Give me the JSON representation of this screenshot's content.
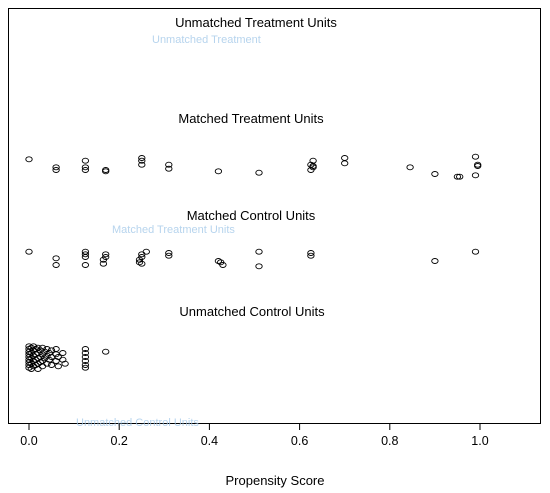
{
  "chart_data": {
    "type": "scatter",
    "title": "",
    "xlabel": "Propensity Score",
    "ylabel": "",
    "xlim": [
      -0.05,
      1.15
    ],
    "xticks": [
      "0.0",
      "0.2",
      "0.4",
      "0.6",
      "0.8",
      "1.0"
    ],
    "xtick_values": [
      0,
      0.2,
      0.4,
      0.6,
      0.8,
      1.0
    ],
    "grid": false,
    "legend": "none",
    "point_style": "open-circle",
    "ghost_labels": [
      "Unmatched Treatment",
      "Matched Treatment Units",
      "Unmatched Control Units"
    ],
    "groups": [
      {
        "name": "Unmatched Treatment Units",
        "points": []
      },
      {
        "name": "Matched Treatment Units",
        "points": [
          [
            0.0,
            4
          ],
          [
            0.06,
            10
          ],
          [
            0.06,
            12
          ],
          [
            0.125,
            5
          ],
          [
            0.125,
            10
          ],
          [
            0.125,
            12
          ],
          [
            0.17,
            13
          ],
          [
            0.17,
            12
          ],
          [
            0.25,
            8
          ],
          [
            0.25,
            3
          ],
          [
            0.25,
            5
          ],
          [
            0.31,
            11
          ],
          [
            0.31,
            8
          ],
          [
            0.42,
            13
          ],
          [
            0.51,
            14
          ],
          [
            0.625,
            12
          ],
          [
            0.625,
            8
          ],
          [
            0.63,
            9
          ],
          [
            0.63,
            5
          ],
          [
            0.63,
            10
          ],
          [
            0.7,
            3
          ],
          [
            0.7,
            7
          ],
          [
            0.845,
            10
          ],
          [
            0.9,
            15
          ],
          [
            0.95,
            17
          ],
          [
            0.955,
            17
          ],
          [
            0.99,
            16
          ],
          [
            0.995,
            8
          ],
          [
            0.995,
            9
          ],
          [
            0.99,
            2
          ]
        ]
      },
      {
        "name": "Matched Control Units",
        "points": [
          [
            0.0,
            2
          ],
          [
            0.06,
            7
          ],
          [
            0.06,
            12
          ],
          [
            0.125,
            2
          ],
          [
            0.125,
            4
          ],
          [
            0.125,
            6
          ],
          [
            0.125,
            12
          ],
          [
            0.165,
            11
          ],
          [
            0.165,
            8
          ],
          [
            0.17,
            4
          ],
          [
            0.17,
            6
          ],
          [
            0.245,
            10
          ],
          [
            0.245,
            8
          ],
          [
            0.25,
            6
          ],
          [
            0.25,
            4
          ],
          [
            0.25,
            11
          ],
          [
            0.26,
            2
          ],
          [
            0.31,
            3
          ],
          [
            0.31,
            5
          ],
          [
            0.42,
            9
          ],
          [
            0.425,
            10
          ],
          [
            0.43,
            12
          ],
          [
            0.51,
            13
          ],
          [
            0.51,
            2
          ],
          [
            0.625,
            5
          ],
          [
            0.625,
            3
          ],
          [
            0.9,
            9
          ],
          [
            0.99,
            2
          ]
        ]
      },
      {
        "name": "Unmatched Control Units",
        "points": [
          [
            0.0,
            1
          ],
          [
            0.0,
            3
          ],
          [
            0.0,
            5
          ],
          [
            0.0,
            7
          ],
          [
            0.0,
            9
          ],
          [
            0.0,
            11
          ],
          [
            0.0,
            13
          ],
          [
            0.0,
            15
          ],
          [
            0.0,
            17
          ],
          [
            0.005,
            2
          ],
          [
            0.005,
            6
          ],
          [
            0.005,
            10
          ],
          [
            0.005,
            14
          ],
          [
            0.005,
            18
          ],
          [
            0.01,
            1
          ],
          [
            0.01,
            4
          ],
          [
            0.01,
            8
          ],
          [
            0.01,
            12
          ],
          [
            0.01,
            16
          ],
          [
            0.015,
            3
          ],
          [
            0.015,
            7
          ],
          [
            0.015,
            11
          ],
          [
            0.015,
            15
          ],
          [
            0.02,
            2
          ],
          [
            0.02,
            6
          ],
          [
            0.02,
            10
          ],
          [
            0.02,
            14
          ],
          [
            0.02,
            18
          ],
          [
            0.025,
            4
          ],
          [
            0.025,
            9
          ],
          [
            0.025,
            13
          ],
          [
            0.03,
            2
          ],
          [
            0.03,
            7
          ],
          [
            0.03,
            12
          ],
          [
            0.03,
            16
          ],
          [
            0.035,
            5
          ],
          [
            0.035,
            10
          ],
          [
            0.04,
            3
          ],
          [
            0.04,
            8
          ],
          [
            0.04,
            14
          ],
          [
            0.045,
            6
          ],
          [
            0.045,
            11
          ],
          [
            0.05,
            4
          ],
          [
            0.05,
            9
          ],
          [
            0.05,
            15
          ],
          [
            0.06,
            3
          ],
          [
            0.06,
            7
          ],
          [
            0.06,
            12
          ],
          [
            0.065,
            9
          ],
          [
            0.065,
            16
          ],
          [
            0.075,
            6
          ],
          [
            0.075,
            11
          ],
          [
            0.08,
            14
          ],
          [
            0.125,
            3
          ],
          [
            0.125,
            6
          ],
          [
            0.125,
            9
          ],
          [
            0.125,
            12
          ],
          [
            0.125,
            15
          ],
          [
            0.125,
            17
          ],
          [
            0.17,
            5
          ]
        ]
      }
    ]
  }
}
